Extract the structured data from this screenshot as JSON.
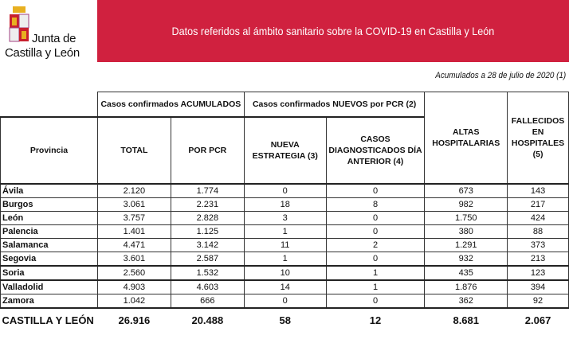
{
  "logo": {
    "line1": "Junta de",
    "line2": "Castilla y León"
  },
  "banner": {
    "title": "Datos referidos al ámbito sanitario sobre la COVID-19 en Castilla y León",
    "color": "#d0213f"
  },
  "subtitle": "Acumulados a 28 de julio de 2020 (1)",
  "headers": {
    "group_acumulados": "Casos confirmados ACUMULADOS",
    "group_nuevos": "Casos confirmados NUEVOS por PCR (2)",
    "provincia": "Provincia",
    "total": "TOTAL",
    "por_pcr": "POR PCR",
    "nueva_estrategia": "NUEVA ESTRATEGIA (3)",
    "casos_dia_anterior": "CASOS DIAGNOSTICADOS DÍA ANTERIOR (4)",
    "altas": "ALTAS HOSPITALARIAS",
    "fallecidos": "FALLECIDOS EN HOSPITALES (5)"
  },
  "rows": [
    [
      "Ávila",
      "2.120",
      "1.774",
      "0",
      "0",
      "673",
      "143"
    ],
    [
      "Burgos",
      "3.061",
      "2.231",
      "18",
      "8",
      "982",
      "217"
    ],
    [
      "León",
      "3.757",
      "2.828",
      "3",
      "0",
      "1.750",
      "424"
    ],
    [
      "Palencia",
      "1.401",
      "1.125",
      "1",
      "0",
      "380",
      "88"
    ],
    [
      "Salamanca",
      "4.471",
      "3.142",
      "11",
      "2",
      "1.291",
      "373"
    ],
    [
      "Segovia",
      "3.601",
      "2.587",
      "1",
      "0",
      "932",
      "213"
    ],
    [
      "Soria",
      "2.560",
      "1.532",
      "10",
      "1",
      "435",
      "123"
    ],
    [
      "Valladolid",
      "4.903",
      "4.603",
      "14",
      "1",
      "1.876",
      "394"
    ],
    [
      "Zamora",
      "1.042",
      "666",
      "0",
      "0",
      "362",
      "92"
    ]
  ],
  "total": [
    "CASTILLA Y LEÓN",
    "26.916",
    "20.488",
    "58",
    "12",
    "8.681",
    "2.067"
  ]
}
